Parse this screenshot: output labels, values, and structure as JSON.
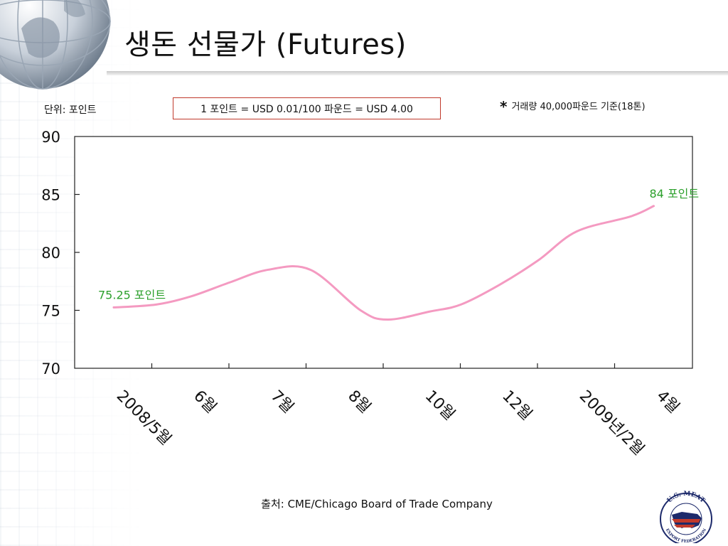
{
  "slide": {
    "title": "생돈 선물가 (Futures)",
    "unit_label": "단위: 포인트",
    "conversion": "1 포인트 = USD 0.01/100 파운드 = USD 4.00",
    "note_star": "*",
    "note": "거래량 40,000파운드 기준(18톤)",
    "source": "출처: CME/Chicago Board of Trade Company"
  },
  "logo": {
    "top_text": "U.S. MEAT",
    "bottom_text": "EXPORT FEDERATION"
  },
  "chart_data": {
    "type": "line",
    "categories": [
      "2008/5월",
      "6월",
      "7월",
      "8월",
      "10월",
      "12월",
      "2009년/2월",
      "4월"
    ],
    "ylim": [
      70,
      90
    ],
    "yticks": [
      70,
      75,
      80,
      85,
      90
    ],
    "grid": false,
    "series": [
      {
        "color": "#f49ac1",
        "x": [
          0,
          0.55,
          1,
          1.5,
          2,
          2.55,
          3.2,
          3.55,
          4.1,
          4.5,
          5,
          5.5,
          6,
          6.7,
          7
        ],
        "values": [
          75.25,
          75.5,
          76.2,
          77.4,
          78.5,
          78.5,
          75.0,
          74.2,
          74.9,
          75.5,
          77.2,
          79.3,
          81.8,
          83.1,
          84
        ]
      }
    ],
    "annotations": [
      {
        "text": "75.25 포인트",
        "color": "#2ca02c",
        "x": 0,
        "y": 75.25
      },
      {
        "text": "84 포인트",
        "color": "#2ca02c",
        "x": 7,
        "y": 84
      }
    ]
  }
}
